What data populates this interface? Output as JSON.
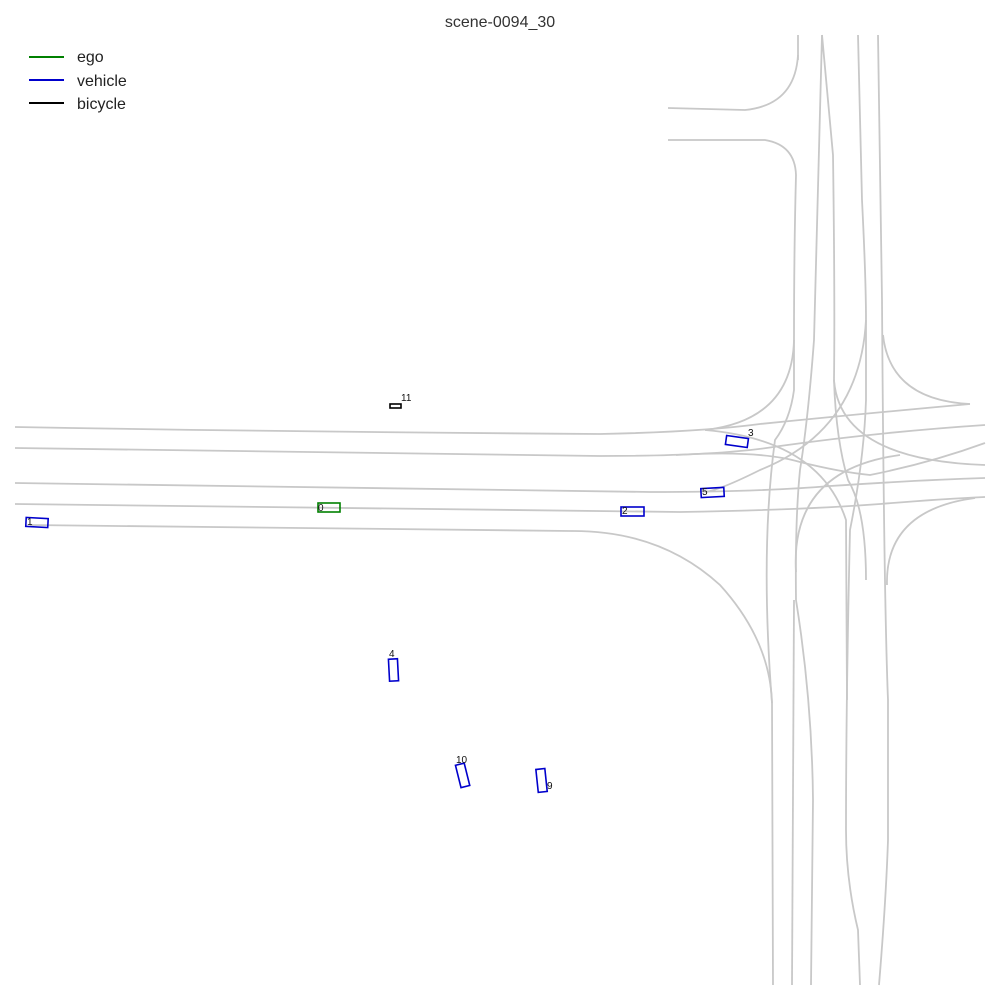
{
  "title": "scene-0094_30",
  "legend": [
    {
      "label": "ego",
      "color": "#008000"
    },
    {
      "label": "vehicle",
      "color": "#0000cc"
    },
    {
      "label": "bicycle",
      "color": "#000000"
    }
  ],
  "agents": [
    {
      "id": "0",
      "category": "ego"
    },
    {
      "id": "1",
      "category": "vehicle"
    },
    {
      "id": "2",
      "category": "vehicle"
    },
    {
      "id": "3",
      "category": "vehicle"
    },
    {
      "id": "4",
      "category": "vehicle"
    },
    {
      "id": "5",
      "category": "vehicle"
    },
    {
      "id": "9",
      "category": "vehicle"
    },
    {
      "id": "10",
      "category": "vehicle"
    },
    {
      "id": "11",
      "category": "bicycle"
    }
  ]
}
